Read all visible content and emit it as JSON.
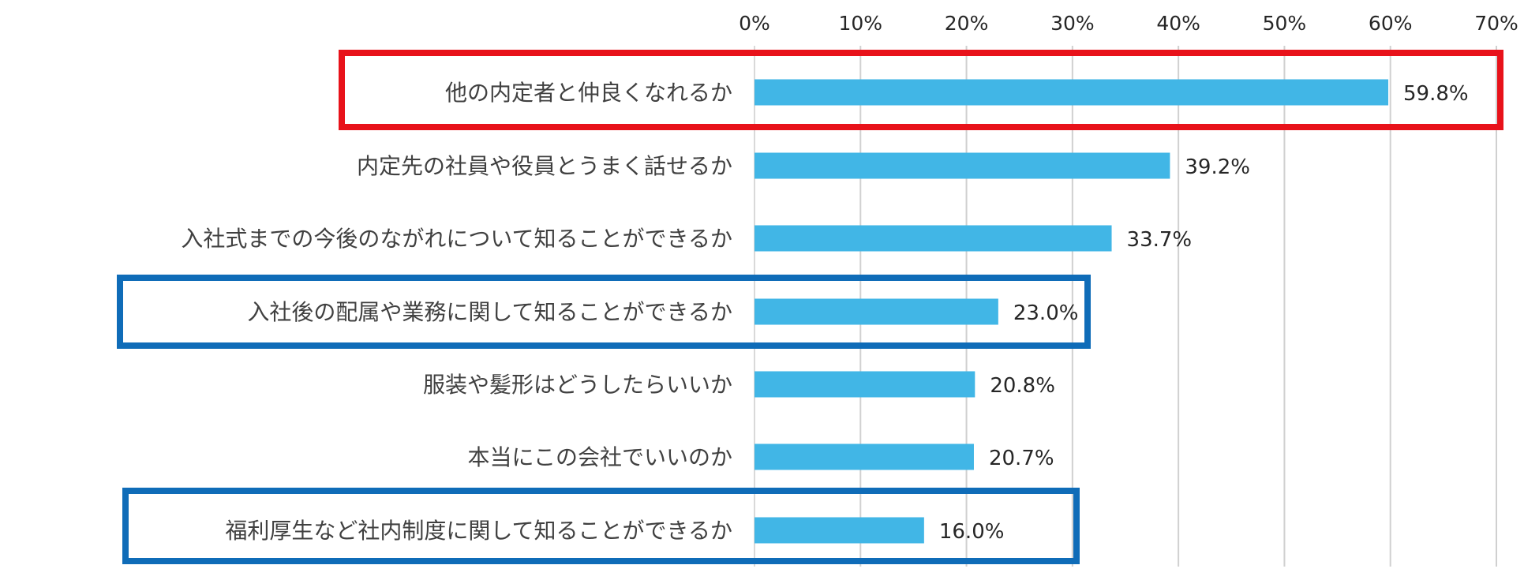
{
  "chart_data": {
    "type": "bar",
    "orientation": "horizontal",
    "x_axis": {
      "range": [
        0,
        70
      ],
      "ticks": [
        0,
        10,
        20,
        30,
        40,
        50,
        60,
        70
      ],
      "tick_labels": [
        "0%",
        "10%",
        "20%",
        "30%",
        "40%",
        "50%",
        "60%",
        "70%"
      ],
      "position": "top"
    },
    "grid": true,
    "bar_color": "#41b6e6",
    "categories": [
      "他の内定者と仲良くなれるか",
      "内定先の社員や役員とうまく話せるか",
      "入社式までの今後のながれについて知ることができるか",
      "入社後の配属や業務に関して知ることができるか",
      "服装や髪形はどうしたらいいか",
      "本当にこの会社でいいのか",
      "福利厚生など社内制度に関して知ることができるか"
    ],
    "values": [
      59.8,
      39.2,
      33.7,
      23.0,
      20.8,
      20.7,
      16.0
    ],
    "value_labels": [
      "59.8%",
      "39.2%",
      "33.7%",
      "23.0%",
      "20.8%",
      "20.7%",
      "16.0%"
    ],
    "highlights": [
      {
        "category_index": 0,
        "color": "#e8121a"
      },
      {
        "category_index": 3,
        "color": "#0f6cb8"
      },
      {
        "category_index": 6,
        "color": "#0f6cb8"
      }
    ]
  }
}
